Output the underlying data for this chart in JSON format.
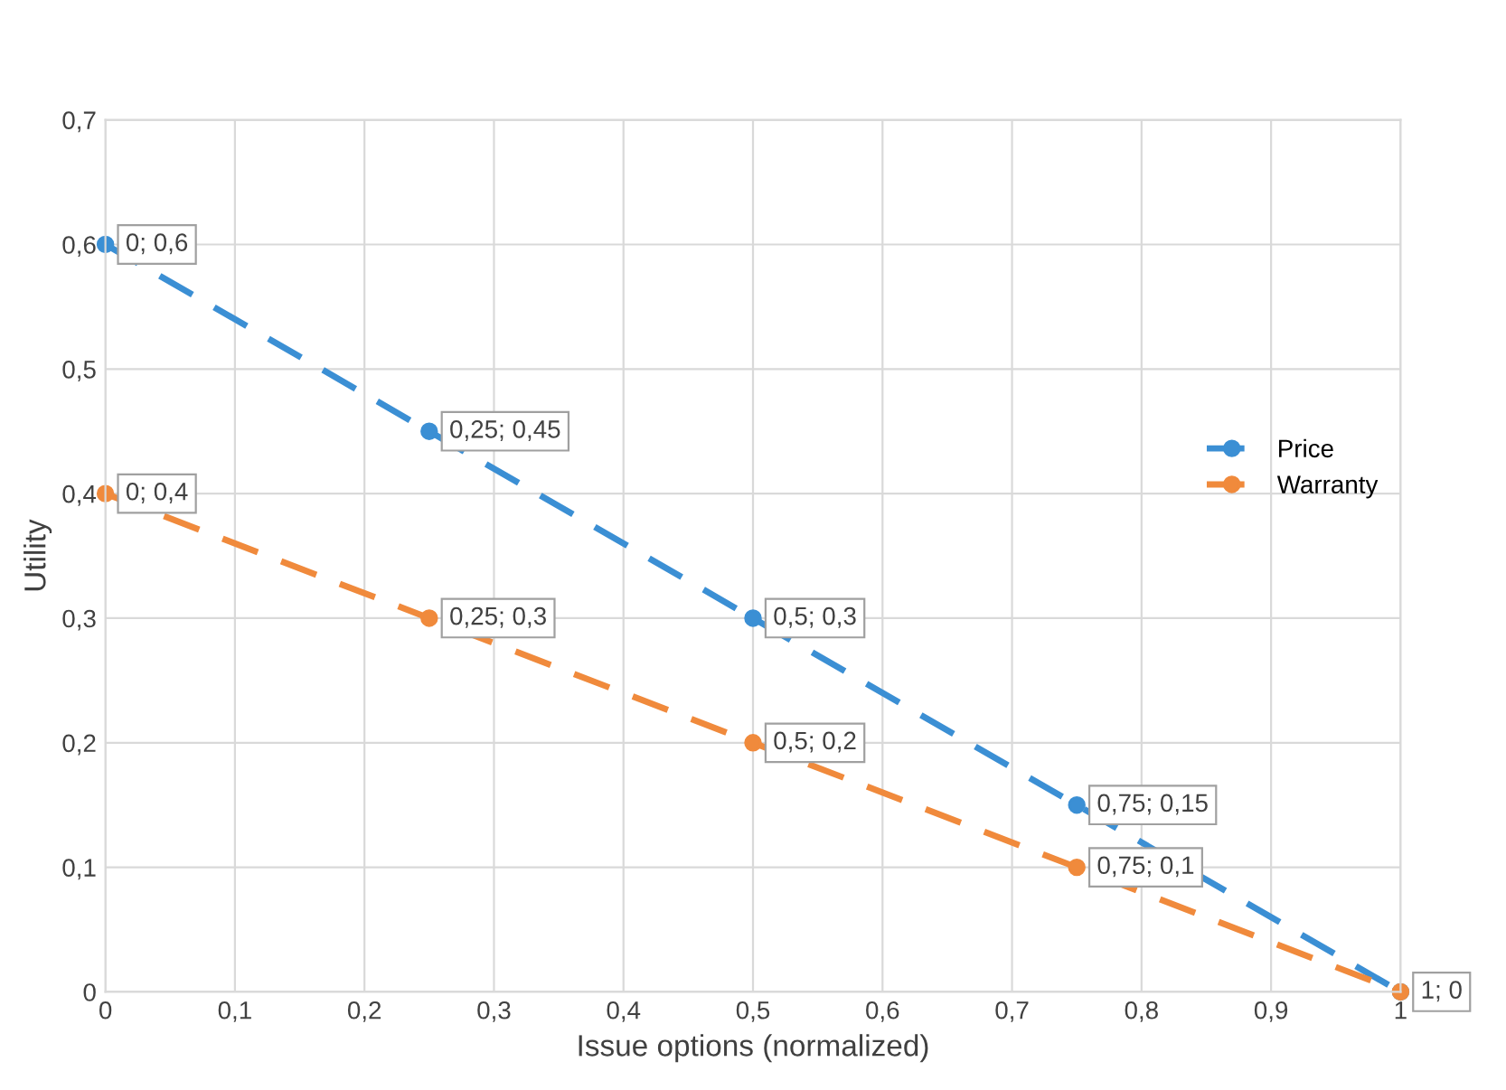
{
  "chart_data": {
    "type": "line",
    "xlabel": "Issue options (normalized)",
    "ylabel": "Utility",
    "x": [
      0,
      0.25,
      0.5,
      0.75,
      1
    ],
    "series": [
      {
        "name": "Price",
        "color": "#3b8fd4",
        "values": [
          0.6,
          0.45,
          0.3,
          0.15,
          0
        ],
        "value_labels": [
          "0; 0,6",
          "0,25; 0,45",
          "0,5; 0,3",
          "0,75; 0,15",
          null
        ]
      },
      {
        "name": "Warranty",
        "color": "#f08a3c",
        "values": [
          0.4,
          0.3,
          0.2,
          0.1,
          0
        ],
        "value_labels": [
          "0; 0,4",
          "0,25; 0,3",
          "0,5; 0,2",
          "0,75; 0,1",
          "1; 0"
        ]
      }
    ],
    "xlim": [
      0,
      1
    ],
    "ylim": [
      0,
      0.7
    ],
    "xticks": [
      0,
      {
        "value": 0.1,
        "label": "0,1"
      },
      {
        "value": 0.2,
        "label": "0,2"
      },
      {
        "value": 0.3,
        "label": "0,3"
      },
      {
        "value": 0.4,
        "label": "0,4"
      },
      {
        "value": 0.5,
        "label": "0,5"
      },
      {
        "value": 0.6,
        "label": "0,6"
      },
      {
        "value": 0.7,
        "label": "0,7"
      },
      {
        "value": 0.8,
        "label": "0,8"
      },
      {
        "value": 0.9,
        "label": "0,9"
      },
      1
    ],
    "yticks": [
      0,
      {
        "value": 0.1,
        "label": "0,1"
      },
      {
        "value": 0.2,
        "label": "0,2"
      },
      {
        "value": 0.3,
        "label": "0,3"
      },
      {
        "value": 0.4,
        "label": "0,4"
      },
      {
        "value": 0.5,
        "label": "0,5"
      },
      {
        "value": 0.6,
        "label": "0,6"
      },
      {
        "value": 0.7,
        "label": "0,7"
      }
    ],
    "grid": true,
    "legend": "right",
    "marker": "circle",
    "line_style": "dashed"
  }
}
